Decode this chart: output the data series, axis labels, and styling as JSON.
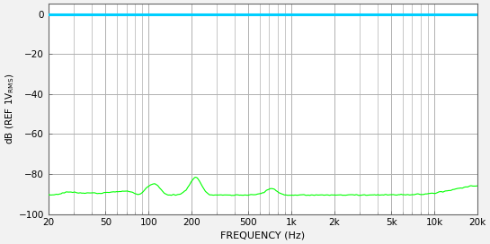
{
  "title": "",
  "xlabel": "FREQUENCY (Hz)",
  "ylabel": "dB (REF 1V$_{RMS}$)",
  "ylim": [
    -100,
    5
  ],
  "xlim": [
    20,
    20000
  ],
  "yticks": [
    0,
    -20,
    -40,
    -60,
    -80,
    -100
  ],
  "bg_color": "#f2f2f2",
  "plot_bg_color": "#ffffff",
  "grid_color": "#b0b0b0",
  "cyan_line_color": "#00cfff",
  "green_line_color": "#00ff00",
  "border_color": "#666666",
  "cyan_level": 0.0,
  "x_major_ticks": [
    20,
    50,
    100,
    200,
    500,
    1000,
    2000,
    5000,
    10000,
    20000
  ],
  "x_tick_labels": [
    "20",
    "50",
    "100",
    "200",
    "500",
    "1k",
    "2k",
    "5k",
    "10k",
    "20k"
  ]
}
